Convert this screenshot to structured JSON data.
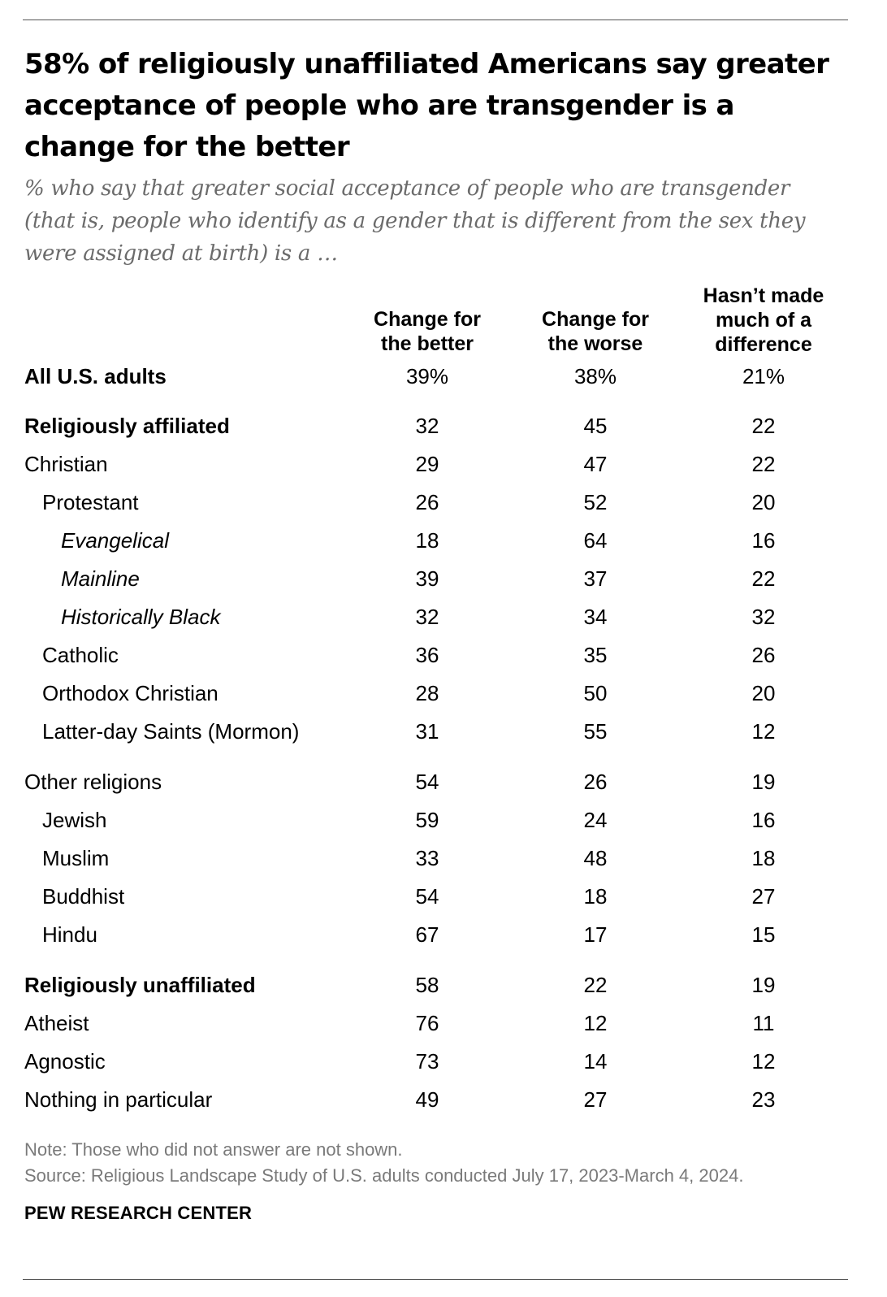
{
  "title": "58% of religiously unaffiliated Americans say greater acceptance of people who are transgender is a change for the better",
  "subtitle": "% who say that greater social acceptance of people who are transgender (that is, people who identify as a gender that is different from the sex they were assigned at birth) is a …",
  "columns": [
    [
      "Change for",
      "the better"
    ],
    [
      "Change for",
      "the worse"
    ],
    [
      "Hasn’t made",
      "much of a",
      "difference"
    ]
  ],
  "chart_data": {
    "type": "table",
    "title": "58% of religiously unaffiliated Americans say greater acceptance of people who are transgender is a change for the better",
    "columns": [
      "Change for the better",
      "Change for the worse",
      "Hasn’t made much of a difference"
    ],
    "rows": [
      {
        "label": "All U.S. adults",
        "values": [
          "39%",
          "38%",
          "21%"
        ],
        "style": "bold",
        "indent": 0
      },
      {
        "label": "Religiously affiliated",
        "values": [
          "32",
          "45",
          "22"
        ],
        "style": "bold",
        "indent": 0
      },
      {
        "label": "Christian",
        "values": [
          "29",
          "47",
          "22"
        ],
        "style": "normal",
        "indent": 0
      },
      {
        "label": "Protestant",
        "values": [
          "26",
          "52",
          "20"
        ],
        "style": "normal",
        "indent": 1
      },
      {
        "label": "Evangelical",
        "values": [
          "18",
          "64",
          "16"
        ],
        "style": "italic",
        "indent": 2
      },
      {
        "label": "Mainline",
        "values": [
          "39",
          "37",
          "22"
        ],
        "style": "italic",
        "indent": 2
      },
      {
        "label": "Historically Black",
        "values": [
          "32",
          "34",
          "32"
        ],
        "style": "italic",
        "indent": 2
      },
      {
        "label": "Catholic",
        "values": [
          "36",
          "35",
          "26"
        ],
        "style": "normal",
        "indent": 1
      },
      {
        "label": "Orthodox Christian",
        "values": [
          "28",
          "50",
          "20"
        ],
        "style": "normal",
        "indent": 1
      },
      {
        "label": "Latter-day Saints (Mormon)",
        "values": [
          "31",
          "55",
          "12"
        ],
        "style": "normal",
        "indent": 1
      },
      {
        "label": "Other religions",
        "values": [
          "54",
          "26",
          "19"
        ],
        "style": "normal",
        "indent": 0
      },
      {
        "label": "Jewish",
        "values": [
          "59",
          "24",
          "16"
        ],
        "style": "normal",
        "indent": 1
      },
      {
        "label": "Muslim",
        "values": [
          "33",
          "48",
          "18"
        ],
        "style": "normal",
        "indent": 1
      },
      {
        "label": "Buddhist",
        "values": [
          "54",
          "18",
          "27"
        ],
        "style": "normal",
        "indent": 1
      },
      {
        "label": "Hindu",
        "values": [
          "67",
          "17",
          "15"
        ],
        "style": "normal",
        "indent": 1
      },
      {
        "label": "Religiously unaffiliated",
        "values": [
          "58",
          "22",
          "19"
        ],
        "style": "bold",
        "indent": 0
      },
      {
        "label": "Atheist",
        "values": [
          "76",
          "12",
          "11"
        ],
        "style": "normal",
        "indent": 0
      },
      {
        "label": "Agnostic",
        "values": [
          "73",
          "14",
          "12"
        ],
        "style": "normal",
        "indent": 0
      },
      {
        "label": "Nothing in particular",
        "values": [
          "49",
          "27",
          "23"
        ],
        "style": "normal",
        "indent": 0
      }
    ]
  },
  "note": "Note: Those who did not answer are not shown.",
  "source": "Source: Religious Landscape Study of U.S. adults conducted July 17, 2023-March 4, 2024.",
  "org": "PEW RESEARCH CENTER"
}
